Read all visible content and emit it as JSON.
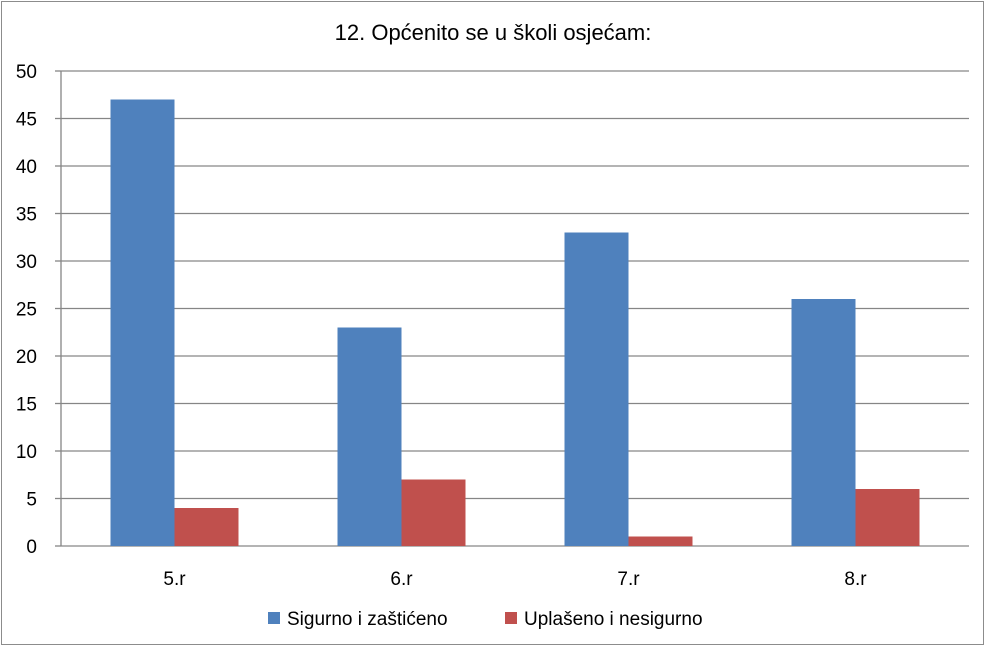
{
  "chart_data": {
    "type": "bar",
    "title": "12. Općenito se u školi osjećam:",
    "xlabel": "",
    "ylabel": "",
    "categories": [
      "5.r",
      "6.r",
      "7.r",
      "8.r"
    ],
    "series": [
      {
        "name": "Sigurno i zaštićeno",
        "values": [
          47,
          23,
          33,
          26
        ],
        "color": "#4f81bd"
      },
      {
        "name": "Uplašeno i nesigurno",
        "values": [
          4,
          7,
          1,
          6
        ],
        "color": "#c0504d"
      }
    ],
    "ylim": [
      0,
      50
    ],
    "yticks": [
      0,
      5,
      10,
      15,
      20,
      25,
      30,
      35,
      40,
      45,
      50
    ],
    "grid": true,
    "legend_position": "bottom"
  }
}
